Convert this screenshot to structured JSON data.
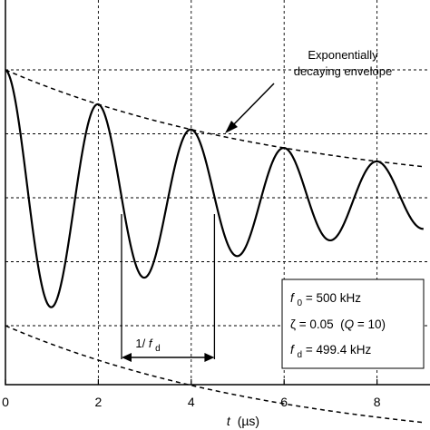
{
  "chart_data": {
    "type": "line",
    "xlabel": {
      "var": "t",
      "unit": "(µs)"
    },
    "ylabel": "",
    "xlim": [
      0,
      9
    ],
    "ylim": [
      -1.25,
      1.05
    ],
    "x_ticks": [
      "0",
      "2",
      "4",
      "6",
      "8"
    ],
    "x_tick_values": [
      0,
      2,
      4,
      6,
      8
    ],
    "y_grid_values": [
      -1,
      -0.5,
      0,
      0.5,
      1
    ],
    "grid": true,
    "grid_style": "dashed",
    "signal": {
      "model": "damped_cosine",
      "f0_MHz": 0.5,
      "zeta": 0.05,
      "fd_MHz": 0.4994,
      "color": "#000000"
    },
    "envelope": {
      "style": "dashed",
      "color": "#000000"
    },
    "annotations": {
      "envelope_label_line1": "Exponentially",
      "envelope_label_line2": "decaying envelope",
      "period_marker": {
        "start_us": 2.5,
        "end_us": 4.5,
        "label_prefix": "1/",
        "label_var": "f",
        "label_sub": "d"
      }
    },
    "params_box": {
      "f0": {
        "var": "f",
        "sub": "0",
        "value": " = 500 kHz"
      },
      "zeta": {
        "var": "ζ",
        "value": " = 0.05  (",
        "q_var": "Q",
        "q_value": " = 10)"
      },
      "fd": {
        "var": "f",
        "sub": "d",
        "value": " = 499.4 kHz"
      }
    }
  }
}
